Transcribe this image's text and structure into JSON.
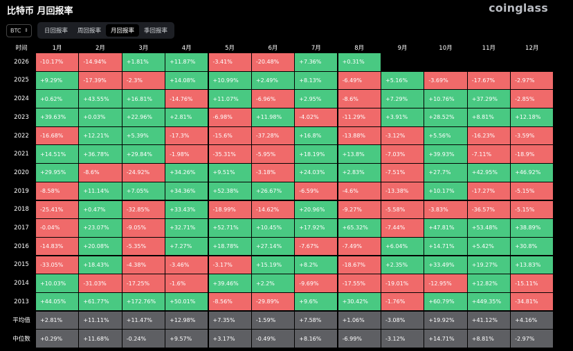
{
  "header": {
    "title": "比特币 月回报率",
    "brand": "coinglass"
  },
  "asset_select": {
    "value": "BTC",
    "chevron_icon": "up-down-chevron-icon"
  },
  "tabs": [
    {
      "label": "日回报率",
      "active": false
    },
    {
      "label": "周回报率",
      "active": false
    },
    {
      "label": "月回报率",
      "active": true
    },
    {
      "label": "季回报率",
      "active": false
    }
  ],
  "colors": {
    "positive": "#49c982",
    "negative": "#f06a6a",
    "stat": "#5e5f63"
  },
  "table": {
    "corner_label": "时间",
    "months": [
      "1月",
      "2月",
      "3月",
      "4月",
      "5月",
      "6月",
      "7月",
      "8月",
      "9月",
      "10月",
      "11月",
      "12月"
    ],
    "rows": [
      {
        "label": "2026",
        "values": [
          "-10.17%",
          "-14.94%",
          "+1.81%",
          "+11.87%",
          "-3.41%",
          "-20.48%",
          "+7.36%",
          "+0.31%",
          "",
          "",
          "",
          ""
        ]
      },
      {
        "label": "2025",
        "values": [
          "+9.29%",
          "-17.39%",
          "-2.3%",
          "+14.08%",
          "+10.99%",
          "+2.49%",
          "+8.13%",
          "-6.49%",
          "+5.16%",
          "-3.69%",
          "-17.67%",
          "-2.97%"
        ]
      },
      {
        "label": "2024",
        "values": [
          "+0.62%",
          "+43.55%",
          "+16.81%",
          "-14.76%",
          "+11.07%",
          "-6.96%",
          "+2.95%",
          "-8.6%",
          "+7.29%",
          "+10.76%",
          "+37.29%",
          "-2.85%"
        ]
      },
      {
        "label": "2023",
        "values": [
          "+39.63%",
          "+0.03%",
          "+22.96%",
          "+2.81%",
          "-6.98%",
          "+11.98%",
          "-4.02%",
          "-11.29%",
          "+3.91%",
          "+28.52%",
          "+8.81%",
          "+12.18%"
        ]
      },
      {
        "label": "2022",
        "values": [
          "-16.68%",
          "+12.21%",
          "+5.39%",
          "-17.3%",
          "-15.6%",
          "-37.28%",
          "+16.8%",
          "-13.88%",
          "-3.12%",
          "+5.56%",
          "-16.23%",
          "-3.59%"
        ]
      },
      {
        "label": "2021",
        "values": [
          "+14.51%",
          "+36.78%",
          "+29.84%",
          "-1.98%",
          "-35.31%",
          "-5.95%",
          "+18.19%",
          "+13.8%",
          "-7.03%",
          "+39.93%",
          "-7.11%",
          "-18.9%"
        ]
      },
      {
        "label": "2020",
        "values": [
          "+29.95%",
          "-8.6%",
          "-24.92%",
          "+34.26%",
          "+9.51%",
          "-3.18%",
          "+24.03%",
          "+2.83%",
          "-7.51%",
          "+27.7%",
          "+42.95%",
          "+46.92%"
        ]
      },
      {
        "label": "2019",
        "values": [
          "-8.58%",
          "+11.14%",
          "+7.05%",
          "+34.36%",
          "+52.38%",
          "+26.67%",
          "-6.59%",
          "-4.6%",
          "-13.38%",
          "+10.17%",
          "-17.27%",
          "-5.15%"
        ]
      },
      {
        "label": "2018",
        "values": [
          "-25.41%",
          "+0.47%",
          "-32.85%",
          "+33.43%",
          "-18.99%",
          "-14.62%",
          "+20.96%",
          "-9.27%",
          "-5.58%",
          "-3.83%",
          "-36.57%",
          "-5.15%"
        ]
      },
      {
        "label": "2017",
        "values": [
          "-0.04%",
          "+23.07%",
          "-9.05%",
          "+32.71%",
          "+52.71%",
          "+10.45%",
          "+17.92%",
          "+65.32%",
          "-7.44%",
          "+47.81%",
          "+53.48%",
          "+38.89%"
        ]
      },
      {
        "label": "2016",
        "values": [
          "-14.83%",
          "+20.08%",
          "-5.35%",
          "+7.27%",
          "+18.78%",
          "+27.14%",
          "-7.67%",
          "-7.49%",
          "+6.04%",
          "+14.71%",
          "+5.42%",
          "+30.8%"
        ]
      },
      {
        "label": "2015",
        "values": [
          "-33.05%",
          "+18.43%",
          "-4.38%",
          "-3.46%",
          "-3.17%",
          "+15.19%",
          "+8.2%",
          "-18.67%",
          "+2.35%",
          "+33.49%",
          "+19.27%",
          "+13.83%"
        ]
      },
      {
        "label": "2014",
        "values": [
          "+10.03%",
          "-31.03%",
          "-17.25%",
          "-1.6%",
          "+39.46%",
          "+2.2%",
          "-9.69%",
          "-17.55%",
          "-19.01%",
          "-12.95%",
          "+12.82%",
          "-15.11%"
        ]
      },
      {
        "label": "2013",
        "values": [
          "+44.05%",
          "+61.77%",
          "+172.76%",
          "+50.01%",
          "-8.56%",
          "-29.89%",
          "+9.6%",
          "+30.42%",
          "-1.76%",
          "+60.79%",
          "+449.35%",
          "-34.81%"
        ]
      }
    ],
    "stats": [
      {
        "label": "平均值",
        "values": [
          "+2.81%",
          "+11.11%",
          "+11.47%",
          "+12.98%",
          "+7.35%",
          "-1.59%",
          "+7.58%",
          "+1.06%",
          "-3.08%",
          "+19.92%",
          "+41.12%",
          "+4.16%"
        ]
      },
      {
        "label": "中位数",
        "values": [
          "+0.29%",
          "+11.68%",
          "-0.24%",
          "+9.57%",
          "+3.17%",
          "-0.49%",
          "+8.16%",
          "-6.99%",
          "-3.12%",
          "+14.71%",
          "+8.81%",
          "-2.97%"
        ]
      }
    ]
  }
}
